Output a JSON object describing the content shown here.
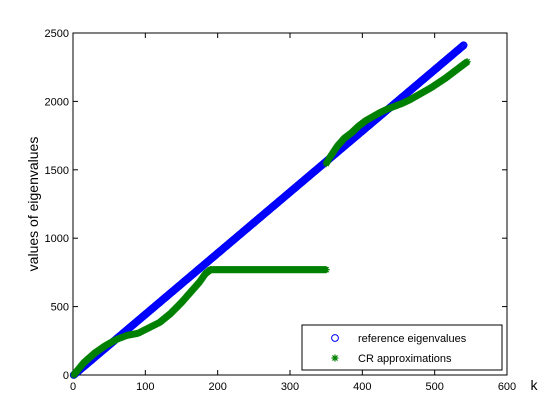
{
  "chart_data": {
    "type": "scatter",
    "title": "",
    "xlabel": "k",
    "ylabel": "values of eigenvalues",
    "xlim": [
      0,
      600
    ],
    "ylim": [
      0,
      2500
    ],
    "xticks": [
      0,
      100,
      200,
      300,
      400,
      500,
      600
    ],
    "yticks": [
      0,
      500,
      1000,
      1500,
      2000,
      2500
    ],
    "grid": false,
    "legend_position": "bottom-right",
    "series": [
      {
        "name": "reference eigenvalues",
        "marker": "circle",
        "color": "#0000ff",
        "x": [
          1,
          540
        ],
        "y": [
          0,
          2410
        ],
        "count": 540,
        "trend": "linear"
      },
      {
        "name": "CR approximations",
        "marker": "asterisk",
        "color": "#008000",
        "segments": [
          {
            "x": [
              1,
              15,
              30,
              45,
              60,
              75,
              90,
              105,
              120,
              135,
              150,
              165,
              175,
              183,
              190
            ],
            "y": [
              0,
              90,
              160,
              215,
              260,
              290,
              305,
              345,
              385,
              450,
              530,
              620,
              680,
              740,
              770
            ]
          },
          {
            "x": [
              190,
              350
            ],
            "y": [
              770,
              770
            ]
          },
          {
            "x": [
              350,
              355,
              360,
              365,
              375,
              385,
              395,
              405,
              415,
              425,
              435,
              445,
              455,
              465,
              475,
              485,
              495,
              505,
              515,
              525,
              535,
              545
            ],
            "y": [
              1545,
              1590,
              1630,
              1670,
              1730,
              1770,
              1820,
              1860,
              1890,
              1920,
              1945,
              1965,
              1985,
              2010,
              2040,
              2070,
              2100,
              2135,
              2170,
              2210,
              2250,
              2290
            ]
          }
        ]
      }
    ]
  }
}
